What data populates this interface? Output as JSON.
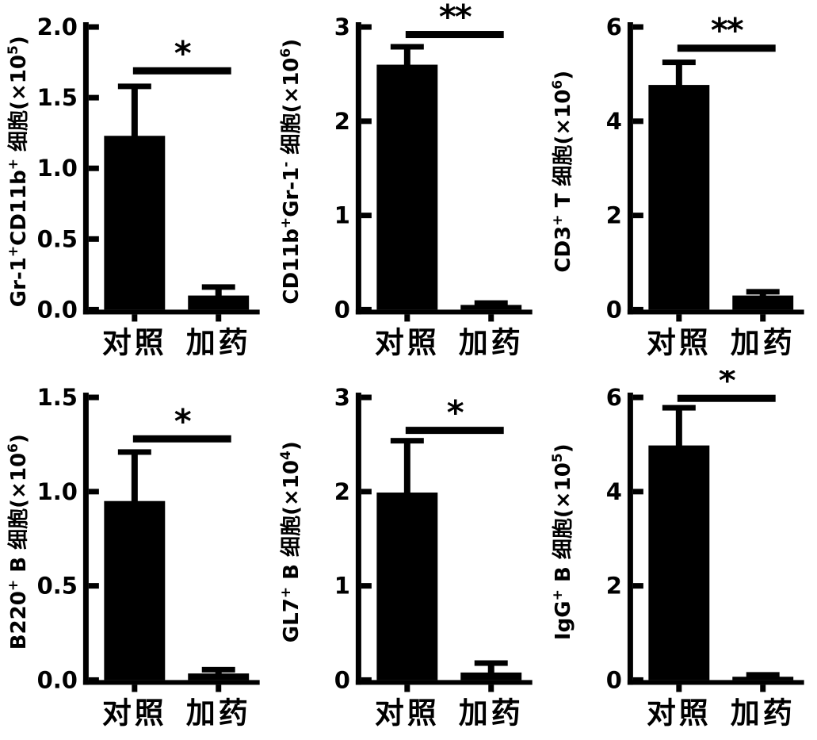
{
  "figure": {
    "background": "#ffffff",
    "ink_color": "#000000",
    "rows": 2,
    "columns": 3
  },
  "categories": [
    "对照",
    "加药"
  ],
  "chart_data": [
    {
      "type": "bar",
      "panel": "row1-col1",
      "ylabel": "Gr-1⁺CD11b⁺ 细胞(×10⁵)",
      "ylabel_segments": [
        {
          "text": "Gr-1"
        },
        {
          "text": "+",
          "sup": true
        },
        {
          "text": "CD11b"
        },
        {
          "text": "+",
          "sup": true
        },
        {
          "text": " 细胞(×10"
        },
        {
          "text": "5",
          "sup": true
        },
        {
          "text": ")"
        }
      ],
      "categories": [
        "对照",
        "加药"
      ],
      "values": [
        1.23,
        0.1
      ],
      "errors_plus": [
        0.35,
        0.06
      ],
      "ylim": [
        0,
        2
      ],
      "yticks": [
        0,
        0.5,
        1,
        1.5,
        2
      ],
      "ytick_labels": [
        "0.0",
        "0.5",
        "1.0",
        "1.5",
        "2.0"
      ],
      "significance": {
        "label": "*",
        "y_value": 1.69
      },
      "grid": false,
      "legend": "none",
      "bar_color": "#000000"
    },
    {
      "type": "bar",
      "panel": "row1-col2",
      "ylabel": "CD11b⁺Gr-1⁻ 细胞(×10⁶)",
      "ylabel_segments": [
        {
          "text": "CD11b"
        },
        {
          "text": "+",
          "sup": true
        },
        {
          "text": "Gr-1"
        },
        {
          "text": "-",
          "sup": true
        },
        {
          "text": " 细胞(×10"
        },
        {
          "text": "6",
          "sup": true
        },
        {
          "text": ")"
        }
      ],
      "categories": [
        "对照",
        "加药"
      ],
      "values": [
        2.6,
        0.05
      ],
      "errors_plus": [
        0.19,
        0.02
      ],
      "ylim": [
        0,
        3
      ],
      "yticks": [
        0,
        1,
        2,
        3
      ],
      "ytick_labels": [
        "0",
        "1",
        "2",
        "3"
      ],
      "significance": {
        "label": "**",
        "y_value": 2.92
      },
      "grid": false,
      "legend": "none",
      "bar_color": "#000000"
    },
    {
      "type": "bar",
      "panel": "row1-col3",
      "ylabel": "CD3⁺ T 细胞(×10⁶)",
      "ylabel_segments": [
        {
          "text": "CD3"
        },
        {
          "text": "+",
          "sup": true
        },
        {
          "text": " T 细胞(×10"
        },
        {
          "text": "6",
          "sup": true
        },
        {
          "text": ")"
        }
      ],
      "categories": [
        "对照",
        "加药"
      ],
      "values": [
        4.77,
        0.3
      ],
      "errors_plus": [
        0.48,
        0.08
      ],
      "ylim": [
        0,
        6
      ],
      "yticks": [
        0,
        2,
        4,
        6
      ],
      "ytick_labels": [
        "0",
        "2",
        "4",
        "6"
      ],
      "significance": {
        "label": "**",
        "y_value": 5.55
      },
      "grid": false,
      "legend": "none",
      "bar_color": "#000000"
    },
    {
      "type": "bar",
      "panel": "row2-col1",
      "ylabel": "B220⁺ B 细胞(×10⁶)",
      "ylabel_segments": [
        {
          "text": "B220"
        },
        {
          "text": "+",
          "sup": true
        },
        {
          "text": " B 细胞(×10"
        },
        {
          "text": "6",
          "sup": true
        },
        {
          "text": ")"
        }
      ],
      "categories": [
        "对照",
        "加药"
      ],
      "values": [
        0.95,
        0.035
      ],
      "errors_plus": [
        0.26,
        0.02
      ],
      "ylim": [
        0,
        1.5
      ],
      "yticks": [
        0,
        0.5,
        1,
        1.5
      ],
      "ytick_labels": [
        "0.0",
        "0.5",
        "1.0",
        "1.5"
      ],
      "significance": {
        "label": "*",
        "y_value": 1.28
      },
      "grid": false,
      "legend": "none",
      "bar_color": "#000000"
    },
    {
      "type": "bar",
      "panel": "row2-col2",
      "ylabel": "GL7⁺ B 细胞(×10⁴)",
      "ylabel_segments": [
        {
          "text": "GL7"
        },
        {
          "text": "+",
          "sup": true
        },
        {
          "text": " B 细胞(×10"
        },
        {
          "text": "4",
          "sup": true
        },
        {
          "text": ")"
        }
      ],
      "categories": [
        "对照",
        "加药"
      ],
      "values": [
        1.99,
        0.08
      ],
      "errors_plus": [
        0.55,
        0.1
      ],
      "ylim": [
        0,
        3
      ],
      "yticks": [
        0,
        1,
        2,
        3
      ],
      "ytick_labels": [
        "0",
        "1",
        "2",
        "3"
      ],
      "significance": {
        "label": "*",
        "y_value": 2.65
      },
      "grid": false,
      "legend": "none",
      "bar_color": "#000000"
    },
    {
      "type": "bar",
      "panel": "row2-col3",
      "ylabel": "IgG⁺ B 细胞(×10⁵)",
      "ylabel_segments": [
        {
          "text": "IgG"
        },
        {
          "text": "+",
          "sup": true
        },
        {
          "text": " B 细胞(×10"
        },
        {
          "text": "5",
          "sup": true
        },
        {
          "text": ")"
        }
      ],
      "categories": [
        "对照",
        "加药"
      ],
      "values": [
        4.98,
        0.07
      ],
      "errors_plus": [
        0.8,
        0.04
      ],
      "ylim": [
        0,
        6
      ],
      "yticks": [
        0,
        2,
        4,
        6
      ],
      "ytick_labels": [
        "0",
        "2",
        "4",
        "6"
      ],
      "significance": {
        "label": "*",
        "y_value": 5.98
      },
      "grid": false,
      "legend": "none",
      "bar_color": "#000000"
    }
  ]
}
